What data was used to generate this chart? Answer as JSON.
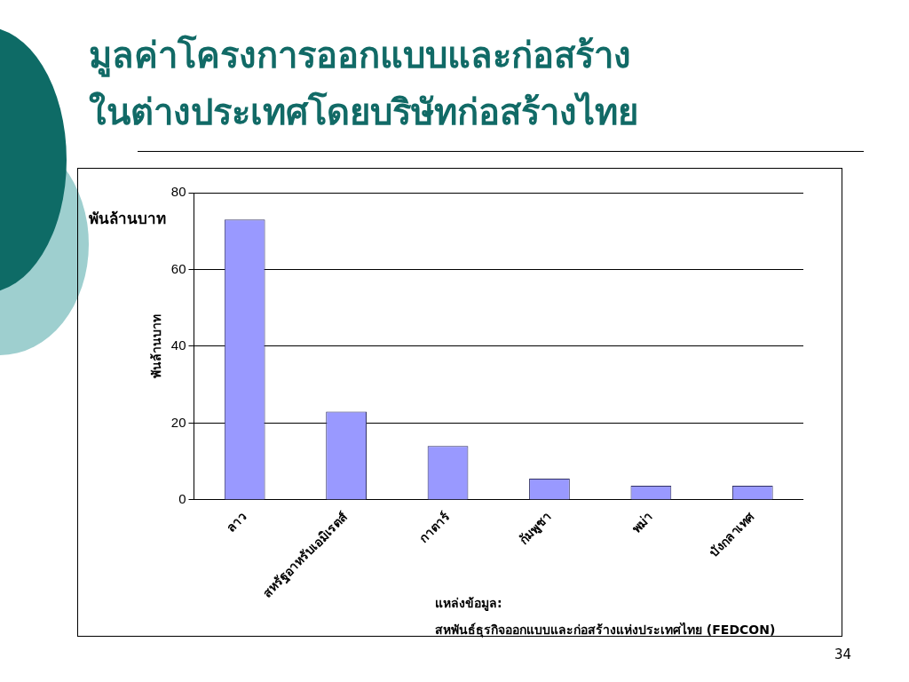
{
  "chart_data": {
    "type": "bar",
    "title": "มูลค่าโครงการออกแบบและก่อสร้าง\nในต่างประเทศโดยบริษัทก่อสร้างไทย",
    "ylabel": "พันล้านบาท",
    "categories": [
      "ลาว",
      "สหรัฐอาหรับเอมิเรตส์",
      "กาตาร์",
      "กัมพูชา",
      "พม่า",
      "บังกลาเทศ"
    ],
    "values": [
      73,
      23,
      14,
      5.5,
      3.7,
      3.7
    ],
    "color": "#9999ff",
    "ylim": [
      0,
      80
    ],
    "yticks": [
      0,
      20,
      40,
      60,
      80
    ],
    "grid": "y",
    "annotations": [
      "พันล้านบาท",
      "แหล่งข้อมูล:",
      "สหพันธ์ธุรกิจออกแบบและก่อสร้างแห่งประเทศไทย (FEDCON)",
      "34"
    ]
  }
}
